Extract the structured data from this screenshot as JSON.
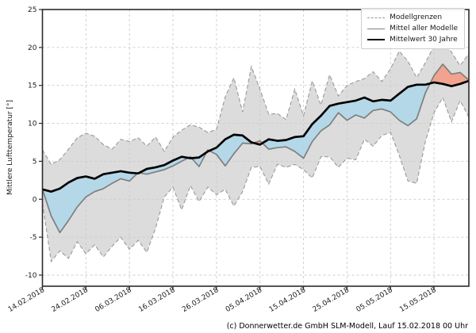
{
  "figure": {
    "ylabel": "Mittlere Lufttemperatur [°]",
    "caption": "(c) Donnerwetter.de GmbH SLM-Modell, Lauf 15.02.2018 00 Uhr"
  },
  "legend": {
    "items": [
      {
        "label": "Modellgrenzen",
        "style": "dashed-gray"
      },
      {
        "label": "Mittel aller Modelle",
        "style": "solid-gray"
      },
      {
        "label": "Mittelwert 30 Jahre",
        "style": "solid-black-thick"
      }
    ]
  },
  "colors": {
    "envelope_fill": "#dcdcdc",
    "envelope_line": "#9a9a9a",
    "model_mean_line": "#7f7f7f",
    "climate_mean_line": "#000000",
    "fill_above_climate": "#f1a38f",
    "fill_below_climate": "#b4d8e8",
    "grid": "#cccccc",
    "frame": "#2b2b2b",
    "tick_text": "#1a1a1a"
  },
  "chart_data": {
    "type": "line",
    "title": "",
    "xlabel": "",
    "ylabel": "Mittlere Lufttemperatur [°]",
    "grid": true,
    "legend_position": "upper right",
    "ylim": [
      -11.5,
      25
    ],
    "xlim_days": [
      0,
      98
    ],
    "y_ticks": [
      25,
      20,
      15,
      10,
      5,
      0,
      -5,
      -10
    ],
    "x_tick_days": [
      0,
      10,
      20,
      30,
      40,
      50,
      60,
      70,
      80,
      90
    ],
    "x_tick_labels": [
      "14.02.2018",
      "24.02.2018",
      "06.03.2018",
      "16.03.2018",
      "26.03.2018",
      "05.04.2018",
      "15.04.2018",
      "25.04.2018",
      "05.05.2018",
      "15.05.2018"
    ],
    "x_unit": "days since 14.02.2018",
    "y_unit": "°C",
    "days": [
      0,
      2,
      4,
      6,
      8,
      10,
      12,
      14,
      16,
      18,
      20,
      22,
      24,
      26,
      28,
      30,
      32,
      34,
      36,
      38,
      40,
      42,
      44,
      46,
      48,
      50,
      52,
      54,
      56,
      58,
      60,
      62,
      64,
      66,
      68,
      70,
      72,
      74,
      76,
      78,
      80,
      82,
      84,
      86,
      88,
      90,
      92,
      94,
      96,
      98
    ],
    "series": [
      {
        "name": "Modellgrenzen (obere Grenze)",
        "line": "dashed",
        "values": [
          6.5,
          4.6,
          5.2,
          6.6,
          8.1,
          8.7,
          8.3,
          7.2,
          6.6,
          7.9,
          7.6,
          8.1,
          7.0,
          8.2,
          6.3,
          8.2,
          9.1,
          9.8,
          9.5,
          8.8,
          9.2,
          13.5,
          16.0,
          11.5,
          17.5,
          14.5,
          11.2,
          11.3,
          10.5,
          14.5,
          11.0,
          15.6,
          12.4,
          16.4,
          13.6,
          15.0,
          15.5,
          15.9,
          16.8,
          15.5,
          17.2,
          19.5,
          18.2,
          16.0,
          18.0,
          20.2,
          20.8,
          19.4,
          17.6,
          19.2
        ]
      },
      {
        "name": "Modellgrenzen (untere Grenze)",
        "line": "dashed",
        "values": [
          -0.5,
          -8.2,
          -6.8,
          -7.8,
          -5.6,
          -7.2,
          -6.0,
          -7.6,
          -6.2,
          -5.0,
          -6.6,
          -5.4,
          -7.0,
          -3.8,
          0.3,
          1.6,
          -1.4,
          1.8,
          -0.3,
          1.6,
          0.6,
          1.3,
          -0.9,
          1.0,
          4.2,
          4.3,
          2.0,
          4.6,
          4.2,
          4.6,
          3.9,
          2.8,
          5.6,
          5.6,
          4.2,
          5.4,
          5.2,
          7.9,
          7.0,
          8.4,
          8.8,
          5.8,
          2.4,
          2.1,
          7.6,
          11.4,
          13.4,
          10.2,
          13.0,
          10.8
        ]
      },
      {
        "name": "Mittel aller Modelle",
        "line": "solid",
        "values": [
          1.3,
          -2.2,
          -4.4,
          -2.8,
          -1.0,
          0.3,
          1.0,
          1.4,
          2.1,
          2.7,
          2.4,
          3.5,
          3.3,
          3.6,
          3.9,
          4.4,
          5.0,
          5.6,
          4.3,
          6.5,
          5.9,
          4.4,
          6.0,
          7.4,
          7.3,
          7.7,
          6.6,
          6.8,
          6.9,
          6.3,
          5.4,
          7.6,
          9.0,
          9.8,
          11.4,
          10.4,
          11.1,
          10.7,
          11.7,
          11.9,
          11.5,
          10.4,
          9.7,
          10.6,
          14.0,
          16.3,
          17.8,
          16.5,
          16.7,
          15.7
        ]
      },
      {
        "name": "Mittelwert 30 Jahre",
        "line": "solid-thick",
        "values": [
          1.3,
          1.0,
          1.4,
          2.2,
          2.8,
          3.0,
          2.7,
          3.3,
          3.5,
          3.7,
          3.5,
          3.4,
          4.0,
          4.2,
          4.5,
          5.1,
          5.6,
          5.4,
          5.5,
          6.3,
          6.8,
          7.9,
          8.5,
          8.4,
          7.5,
          7.2,
          7.9,
          7.7,
          7.8,
          8.2,
          8.3,
          9.9,
          11.0,
          12.3,
          12.6,
          12.8,
          13.0,
          13.4,
          12.9,
          13.1,
          13.0,
          13.9,
          14.8,
          15.1,
          15.1,
          15.4,
          15.2,
          14.9,
          15.2,
          15.6
        ]
      }
    ],
    "fills": [
      {
        "between": [
          "Modellgrenzen (obere Grenze)",
          "Modellgrenzen (untere Grenze)"
        ],
        "color": "#dcdcdc"
      },
      {
        "between": [
          "Mittel aller Modelle",
          "Mittelwert 30 Jahre"
        ],
        "color_above": "#f1a38f",
        "color_below": "#b4d8e8"
      }
    ]
  }
}
